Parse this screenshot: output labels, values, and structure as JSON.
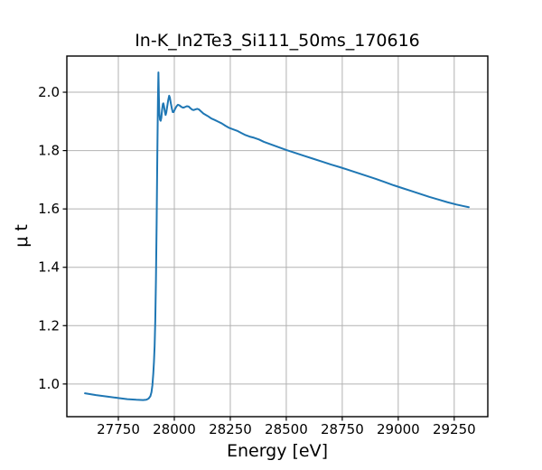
{
  "chart_data": {
    "type": "line",
    "title": "In-K_In2Te3_Si111_50ms_170616",
    "xlabel": "Energy [eV]",
    "ylabel": "μ t",
    "xlim": [
      27520,
      29400
    ],
    "ylim": [
      0.888,
      2.124
    ],
    "x_ticks": [
      {
        "value": 27750,
        "label": "27750"
      },
      {
        "value": 28000,
        "label": "28000"
      },
      {
        "value": 28250,
        "label": "28250"
      },
      {
        "value": 28500,
        "label": "28500"
      },
      {
        "value": 28750,
        "label": "28750"
      },
      {
        "value": 29000,
        "label": "29000"
      },
      {
        "value": 29250,
        "label": "29250"
      }
    ],
    "y_ticks": [
      {
        "value": 1.0,
        "label": "1.0"
      },
      {
        "value": 1.2,
        "label": "1.2"
      },
      {
        "value": 1.4,
        "label": "1.4"
      },
      {
        "value": 1.6,
        "label": "1.6"
      },
      {
        "value": 1.8,
        "label": "1.8"
      },
      {
        "value": 2.0,
        "label": "2.0"
      }
    ],
    "grid": true,
    "legend": "none",
    "colors": {
      "line": "#1f77b4",
      "grid": "#b2b2b2",
      "spine": "#000000",
      "background": "#ffffff"
    },
    "series": [
      {
        "name": "mu_t",
        "points": [
          [
            27601,
            0.968
          ],
          [
            27650,
            0.962
          ],
          [
            27700,
            0.957
          ],
          [
            27750,
            0.952
          ],
          [
            27790,
            0.948
          ],
          [
            27830,
            0.946
          ],
          [
            27860,
            0.945
          ],
          [
            27875,
            0.946
          ],
          [
            27885,
            0.95
          ],
          [
            27893,
            0.958
          ],
          [
            27898,
            0.972
          ],
          [
            27902,
            0.995
          ],
          [
            27906,
            1.035
          ],
          [
            27909,
            1.075
          ],
          [
            27912,
            1.13
          ],
          [
            27915,
            1.22
          ],
          [
            27918,
            1.36
          ],
          [
            27921,
            1.55
          ],
          [
            27924,
            1.78
          ],
          [
            27927,
            1.98
          ],
          [
            27929,
            2.068
          ],
          [
            27931,
            1.985
          ],
          [
            27933,
            1.93
          ],
          [
            27936,
            1.906
          ],
          [
            27939,
            1.902
          ],
          [
            27942,
            1.912
          ],
          [
            27945,
            1.938
          ],
          [
            27949,
            1.96
          ],
          [
            27951,
            1.962
          ],
          [
            27954,
            1.952
          ],
          [
            27958,
            1.932
          ],
          [
            27961,
            1.922
          ],
          [
            27964,
            1.93
          ],
          [
            27968,
            1.95
          ],
          [
            27973,
            1.974
          ],
          [
            27977,
            1.988
          ],
          [
            27980,
            1.982
          ],
          [
            27984,
            1.964
          ],
          [
            27989,
            1.944
          ],
          [
            27993,
            1.932
          ],
          [
            27997,
            1.932
          ],
          [
            28003,
            1.942
          ],
          [
            28010,
            1.952
          ],
          [
            28016,
            1.957
          ],
          [
            28023,
            1.955
          ],
          [
            28031,
            1.95
          ],
          [
            28039,
            1.947
          ],
          [
            28047,
            1.949
          ],
          [
            28056,
            1.952
          ],
          [
            28064,
            1.951
          ],
          [
            28072,
            1.945
          ],
          [
            28080,
            1.94
          ],
          [
            28087,
            1.939
          ],
          [
            28094,
            1.941
          ],
          [
            28102,
            1.943
          ],
          [
            28110,
            1.941
          ],
          [
            28120,
            1.934
          ],
          [
            28130,
            1.927
          ],
          [
            28141,
            1.922
          ],
          [
            28152,
            1.917
          ],
          [
            28165,
            1.91
          ],
          [
            28180,
            1.905
          ],
          [
            28196,
            1.899
          ],
          [
            28212,
            1.893
          ],
          [
            28228,
            1.885
          ],
          [
            28244,
            1.878
          ],
          [
            28262,
            1.873
          ],
          [
            28280,
            1.868
          ],
          [
            28300,
            1.86
          ],
          [
            28318,
            1.853
          ],
          [
            28336,
            1.848
          ],
          [
            28356,
            1.844
          ],
          [
            28378,
            1.838
          ],
          [
            28400,
            1.83
          ],
          [
            28425,
            1.823
          ],
          [
            28450,
            1.816
          ],
          [
            28475,
            1.809
          ],
          [
            28500,
            1.802
          ],
          [
            28540,
            1.792
          ],
          [
            28580,
            1.782
          ],
          [
            28620,
            1.772
          ],
          [
            28660,
            1.762
          ],
          [
            28700,
            1.752
          ],
          [
            28740,
            1.743
          ],
          [
            28780,
            1.733
          ],
          [
            28820,
            1.723
          ],
          [
            28860,
            1.713
          ],
          [
            28900,
            1.703
          ],
          [
            28940,
            1.692
          ],
          [
            28980,
            1.681
          ],
          [
            29020,
            1.671
          ],
          [
            29060,
            1.661
          ],
          [
            29100,
            1.651
          ],
          [
            29140,
            1.641
          ],
          [
            29180,
            1.632
          ],
          [
            29220,
            1.623
          ],
          [
            29260,
            1.615
          ],
          [
            29290,
            1.61
          ],
          [
            29315,
            1.606
          ]
        ]
      }
    ]
  }
}
